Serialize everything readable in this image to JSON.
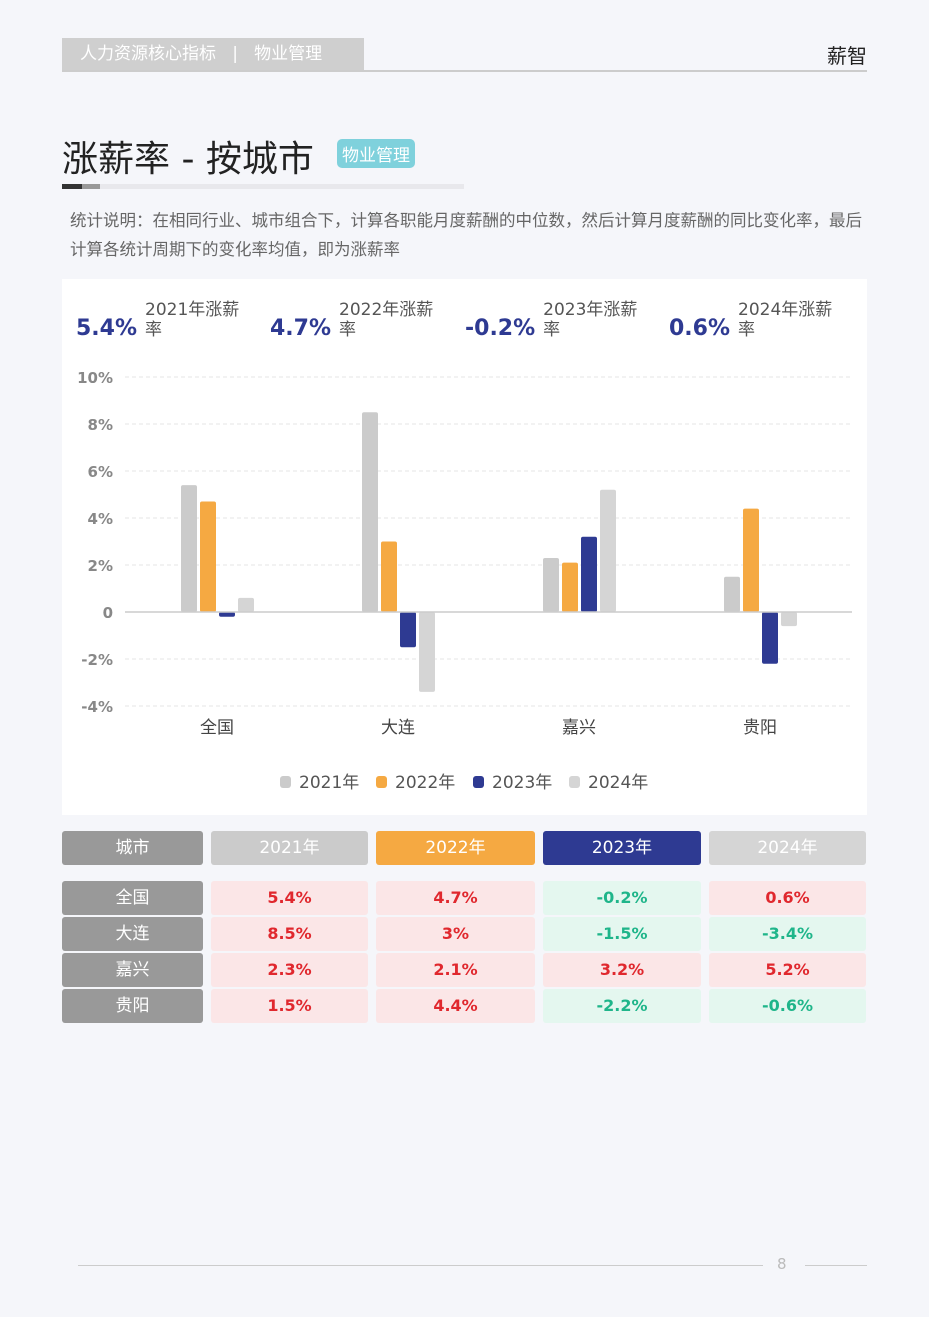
{
  "header": {
    "section": "人力资源核心指标   |   物业管理",
    "brand": "薪智"
  },
  "page": {
    "title": "涨薪率 - 按城市",
    "tag": "物业管理",
    "description": "统计说明：在相同行业、城市组合下，计算各职能月度薪酬的中位数，然后计算月度薪酬的同比变化率，最后计算各统计周期下的变化率均值，即为涨薪率",
    "page_number": "8"
  },
  "kpis": [
    {
      "value": "5.4%",
      "label": "2021年涨薪率"
    },
    {
      "value": "4.7%",
      "label": "2022年涨薪率"
    },
    {
      "value": "-0.2%",
      "label": "2023年涨薪率"
    },
    {
      "value": "0.6%",
      "label": "2024年涨薪率"
    }
  ],
  "colors": {
    "2021": "#cbcbcb",
    "2022": "#f5a942",
    "2023": "#2e3a92",
    "2024": "#d5d5d5",
    "accent": "#2e3a92",
    "tag": "#7fd1dc"
  },
  "chart_data": {
    "type": "bar",
    "categories": [
      "全国",
      "大连",
      "嘉兴",
      "贵阳"
    ],
    "ylim": [
      -4,
      10
    ],
    "yticks": [
      "-4%",
      "-2%",
      "0",
      "2%",
      "4%",
      "6%",
      "8%",
      "10%"
    ],
    "ytick_values": [
      -4,
      -2,
      0,
      2,
      4,
      6,
      8,
      10
    ],
    "grid": true,
    "legend": "bottom",
    "series": [
      {
        "name": "2021年",
        "values": [
          5.4,
          8.5,
          2.3,
          1.5
        ]
      },
      {
        "name": "2022年",
        "values": [
          4.7,
          3,
          2.1,
          4.4
        ]
      },
      {
        "name": "2023年",
        "values": [
          -0.2,
          -1.5,
          3.2,
          -2.2
        ]
      },
      {
        "name": "2024年",
        "values": [
          0.6,
          -3.4,
          5.2,
          -0.6
        ]
      }
    ]
  },
  "table": {
    "headers": [
      "城市",
      "2021年",
      "2022年",
      "2023年",
      "2024年"
    ],
    "rows": [
      [
        "全国",
        "5.4%",
        "4.7%",
        "-0.2%",
        "0.6%"
      ],
      [
        "大连",
        "8.5%",
        "3%",
        "-1.5%",
        "-3.4%"
      ],
      [
        "嘉兴",
        "2.3%",
        "2.1%",
        "3.2%",
        "5.2%"
      ],
      [
        "贵阳",
        "1.5%",
        "4.4%",
        "-2.2%",
        "-0.6%"
      ]
    ]
  }
}
